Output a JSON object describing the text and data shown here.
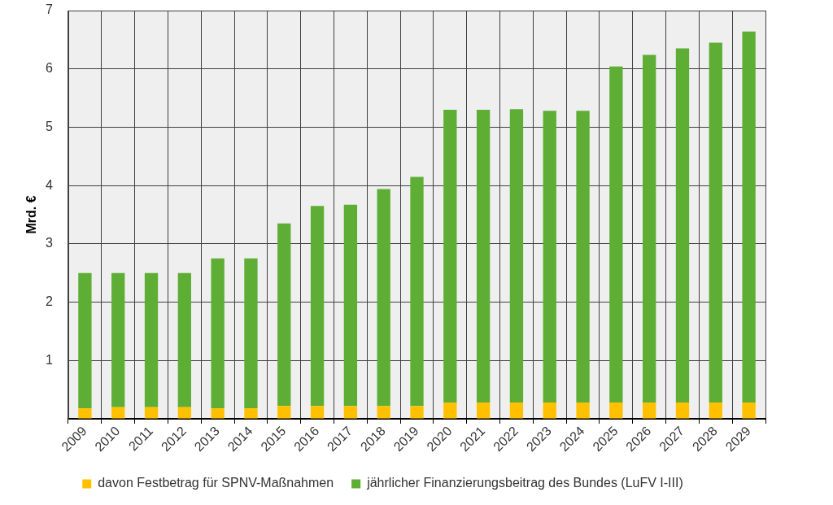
{
  "chart_data": {
    "type": "bar",
    "stacked": true,
    "ylabel": "Mrd. €",
    "categories": [
      "2009",
      "2010",
      "2011",
      "2012",
      "2013",
      "2014",
      "2015",
      "2016",
      "2017",
      "2018",
      "2019",
      "2020",
      "2021",
      "2022",
      "2023",
      "2024",
      "2025",
      "2026",
      "2027",
      "2028",
      "2029"
    ],
    "series": [
      {
        "name": "davon Festbetrag für SPNV-Maßnahmen",
        "color": "#ffc000",
        "values": [
          0.18,
          0.2,
          0.2,
          0.2,
          0.18,
          0.18,
          0.22,
          0.22,
          0.22,
          0.22,
          0.22,
          0.28,
          0.28,
          0.28,
          0.28,
          0.28,
          0.28,
          0.28,
          0.28,
          0.28,
          0.28
        ]
      },
      {
        "name": "jährlicher Finanzierungsbeitrag des Bundes (LuFV I-III)",
        "color": "#5eae36",
        "values": [
          2.32,
          2.3,
          2.3,
          2.3,
          2.57,
          2.57,
          3.13,
          3.43,
          3.45,
          3.72,
          3.93,
          5.02,
          5.02,
          5.03,
          5.0,
          5.0,
          5.76,
          5.96,
          6.07,
          6.17,
          6.36
        ]
      }
    ],
    "ylim": [
      0,
      7
    ],
    "yticks": [
      {
        "value": 0,
        "label": null
      },
      1,
      2,
      3,
      4,
      5,
      6,
      7
    ],
    "grid": true,
    "legend": "bottom"
  }
}
